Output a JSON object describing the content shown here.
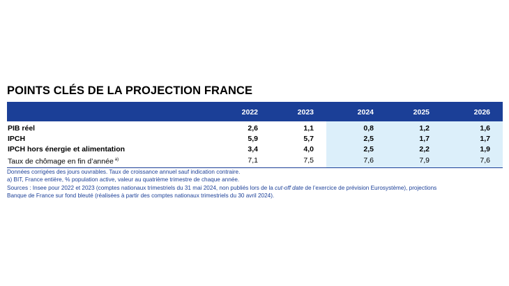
{
  "title": "POINTS CLÉS DE LA PROJECTION FRANCE",
  "table": {
    "columns": [
      "2022",
      "2023",
      "2024",
      "2025",
      "2026"
    ],
    "rows": [
      {
        "label": "PIB réel",
        "values": [
          "2,6",
          "1,1",
          "0,8",
          "1,2",
          "1,6"
        ]
      },
      {
        "label": "IPCH",
        "values": [
          "5,9",
          "5,7",
          "2,5",
          "1,7",
          "1,7"
        ]
      },
      {
        "label": "IPCH hors énergie et alimentation",
        "values": [
          "3,4",
          "4,0",
          "2,5",
          "2,2",
          "1,9"
        ]
      },
      {
        "label": "Taux de chômage en fin d’année",
        "footnote": "a)",
        "values": [
          "7,1",
          "7,5",
          "7,6",
          "7,9",
          "7,6"
        ]
      }
    ]
  },
  "notes": {
    "line1": "Données corrigées des jours ouvrables. Taux de croissance annuel sauf indication contraire.",
    "line2": "a)  BIT, France entière, % population active, valeur au quatrième trimestre de chaque année.",
    "line3_a": "Sources : Insee pour 2022 et 2023 (comptes nationaux trimestriels du 31 mai 2024, non publiés lors de la ",
    "line3_italic": "cut-off date",
    "line3_b": " de l’exercice de prévision Eurosystème), projections",
    "line4": "Banque de France sur fond bleuté (réalisées à partir des comptes nationaux trimestriels du 30 avril 2024)."
  },
  "colors": {
    "header_bg": "#1b3f97",
    "projection_bg": "#dceffa",
    "notes_text": "#1b3f97"
  }
}
